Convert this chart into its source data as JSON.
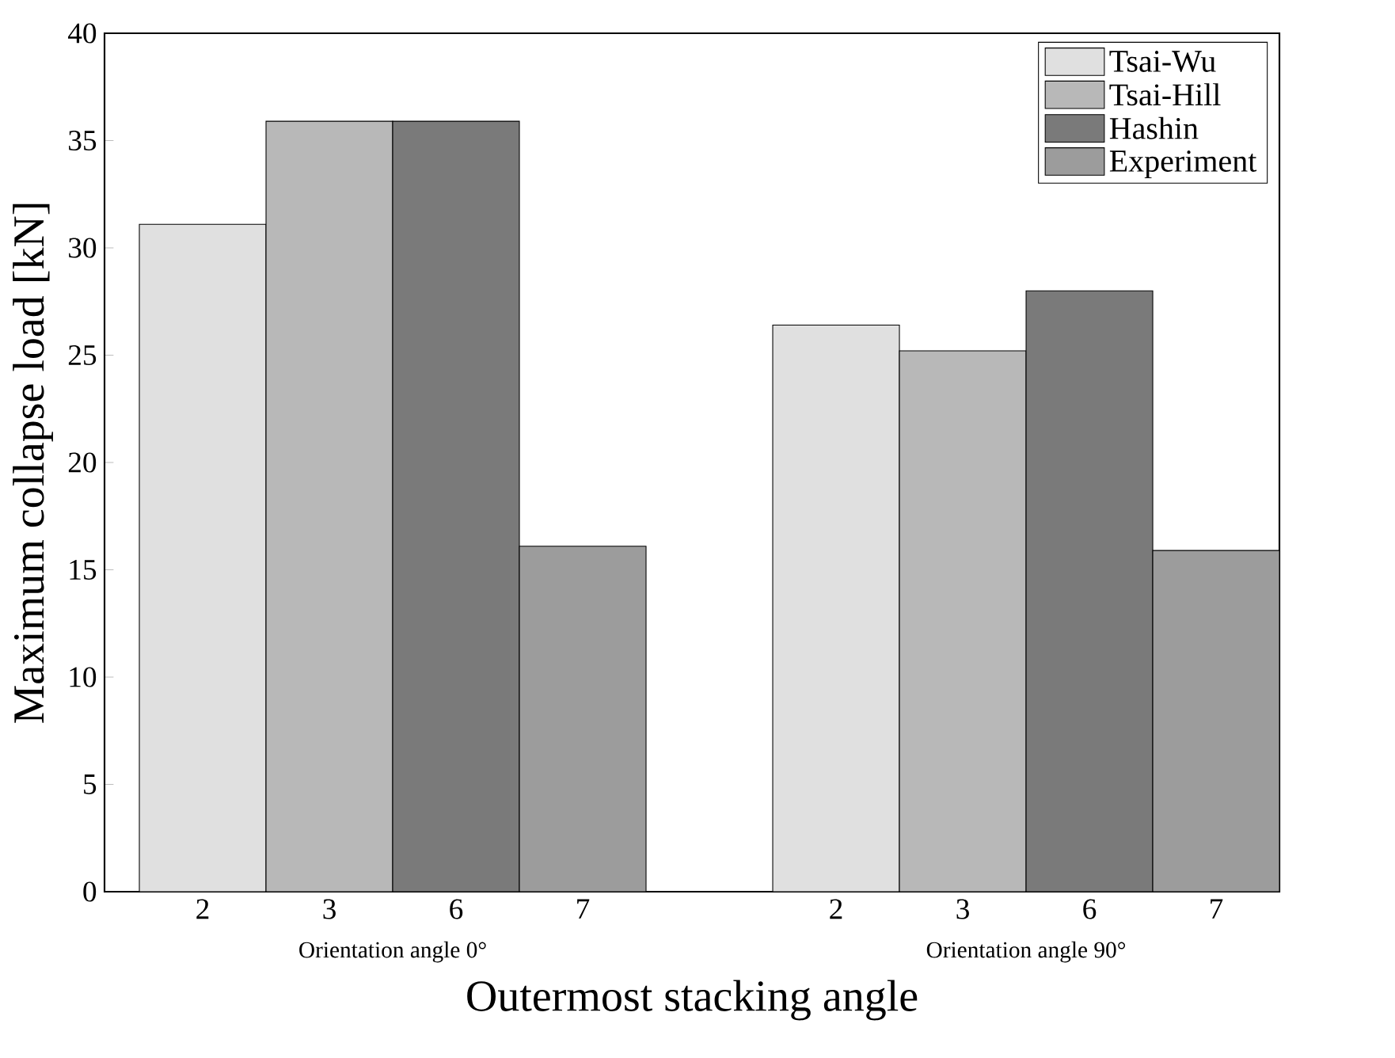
{
  "chart_data": {
    "type": "bar",
    "xlabel": "Outermost stacking angle",
    "ylabel": "Maximum collapse load [kN]",
    "categories": [
      "2",
      "3",
      "6",
      "7",
      null,
      "2",
      "3",
      "6",
      "7"
    ],
    "series": [
      {
        "name": "Tsai-Wu",
        "color": "#e0e0e0",
        "values": [
          31.1,
          null,
          null,
          null,
          null,
          26.4,
          null,
          null,
          null
        ]
      },
      {
        "name": "Tsai-Hill",
        "color": "#b8b8b8",
        "values": [
          null,
          35.9,
          null,
          null,
          null,
          null,
          25.2,
          null,
          null
        ]
      },
      {
        "name": "Hashin",
        "color": "#7a7a7a",
        "values": [
          null,
          null,
          35.9,
          null,
          null,
          null,
          null,
          28.0,
          null
        ]
      },
      {
        "name": "Experiment",
        "color": "#9c9c9c",
        "values": [
          null,
          null,
          null,
          16.1,
          null,
          null,
          null,
          null,
          15.9
        ]
      }
    ],
    "annotations": [
      "Orientation angle 0°",
      "Orientation angle 90°"
    ],
    "ylim": [
      0,
      40
    ],
    "yticks": [
      0,
      5,
      10,
      15,
      20,
      25,
      30,
      35,
      40
    ],
    "grid": false,
    "legend": "top right"
  }
}
